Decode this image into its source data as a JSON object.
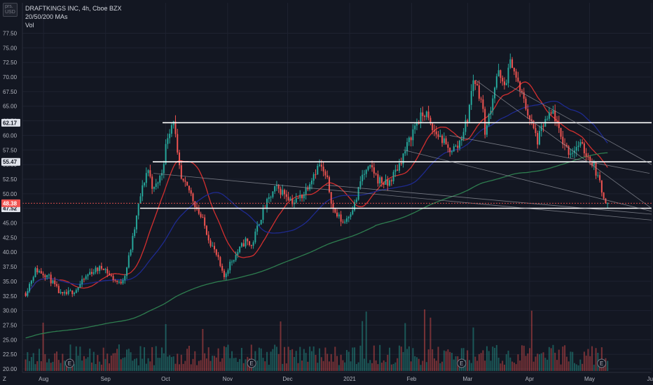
{
  "header": {
    "title": "DRAFTKINGS INC, 4h, Cboe BZX",
    "studies": "20/50/200 MAs",
    "volume_label": "Vol",
    "currency_top": "prs.",
    "currency_bottom": "USD"
  },
  "colors": {
    "background": "#131722",
    "up": "#26a69a",
    "down": "#ef5350",
    "ma20": "#d32f2f",
    "ma50": "#1e2a8f",
    "ma200": "#2e7d4f",
    "level_line": "#ffffff",
    "trendline": "#9598a1"
  },
  "chart_data": {
    "type": "candlestick",
    "symbol": "DRAFTKINGS INC",
    "interval": "4h",
    "exchange": "Cboe BZX",
    "y_axis": {
      "min": 20,
      "max": 77.5,
      "ticks": [
        "77.50",
        "75.00",
        "72.50",
        "70.00",
        "67.50",
        "65.00",
        "62.50",
        "60.00",
        "57.50",
        "55.00",
        "52.50",
        "50.00",
        "47.50",
        "45.00",
        "42.50",
        "40.00",
        "37.50",
        "35.00",
        "32.50",
        "30.00",
        "27.50",
        "25.00",
        "22.50",
        "20.00"
      ]
    },
    "x_axis": {
      "ticks": [
        "Aug",
        "Sep",
        "Oct",
        "Nov",
        "Dec",
        "2021",
        "Feb",
        "Mar",
        "Apr",
        "May",
        "Jun"
      ],
      "left_edge_label": "Z"
    },
    "price_series": [
      {
        "date": "2020-07-23",
        "price": 33
      },
      {
        "date": "2020-07-28",
        "price": 37
      },
      {
        "date": "2020-08-03",
        "price": 36
      },
      {
        "date": "2020-08-10",
        "price": 32.5
      },
      {
        "date": "2020-08-17",
        "price": 33.5
      },
      {
        "date": "2020-08-24",
        "price": 36.5
      },
      {
        "date": "2020-08-31",
        "price": 37.5
      },
      {
        "date": "2020-09-03",
        "price": 36
      },
      {
        "date": "2020-09-08",
        "price": 34.5
      },
      {
        "date": "2020-09-11",
        "price": 36.5
      },
      {
        "date": "2020-09-15",
        "price": 43
      },
      {
        "date": "2020-09-18",
        "price": 49
      },
      {
        "date": "2020-09-22",
        "price": 54.5
      },
      {
        "date": "2020-09-25",
        "price": 50.5
      },
      {
        "date": "2020-09-29",
        "price": 53.5
      },
      {
        "date": "2020-10-02",
        "price": 60
      },
      {
        "date": "2020-10-05",
        "price": 63
      },
      {
        "date": "2020-10-07",
        "price": 56
      },
      {
        "date": "2020-10-09",
        "price": 52
      },
      {
        "date": "2020-10-13",
        "price": 50.5
      },
      {
        "date": "2020-10-16",
        "price": 48
      },
      {
        "date": "2020-10-20",
        "price": 45
      },
      {
        "date": "2020-10-23",
        "price": 42
      },
      {
        "date": "2020-10-27",
        "price": 39
      },
      {
        "date": "2020-10-30",
        "price": 35.5
      },
      {
        "date": "2020-11-02",
        "price": 38
      },
      {
        "date": "2020-11-06",
        "price": 40
      },
      {
        "date": "2020-11-10",
        "price": 42
      },
      {
        "date": "2020-11-13",
        "price": 41
      },
      {
        "date": "2020-11-17",
        "price": 45.5
      },
      {
        "date": "2020-11-20",
        "price": 48
      },
      {
        "date": "2020-11-25",
        "price": 51
      },
      {
        "date": "2020-11-30",
        "price": 50
      },
      {
        "date": "2020-12-04",
        "price": 48.5
      },
      {
        "date": "2020-12-09",
        "price": 50
      },
      {
        "date": "2020-12-14",
        "price": 53.5
      },
      {
        "date": "2020-12-17",
        "price": 55
      },
      {
        "date": "2020-12-21",
        "price": 52
      },
      {
        "date": "2020-12-24",
        "price": 47
      },
      {
        "date": "2020-12-29",
        "price": 45
      },
      {
        "date": "2021-01-04",
        "price": 48.5
      },
      {
        "date": "2021-01-07",
        "price": 53
      },
      {
        "date": "2021-01-12",
        "price": 54.5
      },
      {
        "date": "2021-01-15",
        "price": 52.5
      },
      {
        "date": "2021-01-20",
        "price": 51.5
      },
      {
        "date": "2021-01-25",
        "price": 54.5
      },
      {
        "date": "2021-01-29",
        "price": 57.5
      },
      {
        "date": "2021-02-03",
        "price": 62
      },
      {
        "date": "2021-02-08",
        "price": 64
      },
      {
        "date": "2021-02-11",
        "price": 61
      },
      {
        "date": "2021-02-16",
        "price": 59.5
      },
      {
        "date": "2021-02-19",
        "price": 57.5
      },
      {
        "date": "2021-02-24",
        "price": 58
      },
      {
        "date": "2021-03-01",
        "price": 63
      },
      {
        "date": "2021-03-04",
        "price": 70
      },
      {
        "date": "2021-03-08",
        "price": 66
      },
      {
        "date": "2021-03-10",
        "price": 60
      },
      {
        "date": "2021-03-12",
        "price": 64
      },
      {
        "date": "2021-03-16",
        "price": 71
      },
      {
        "date": "2021-03-19",
        "price": 68
      },
      {
        "date": "2021-03-23",
        "price": 73
      },
      {
        "date": "2021-03-25",
        "price": 70
      },
      {
        "date": "2021-03-29",
        "price": 66
      },
      {
        "date": "2021-04-01",
        "price": 63
      },
      {
        "date": "2021-04-05",
        "price": 59
      },
      {
        "date": "2021-04-08",
        "price": 62
      },
      {
        "date": "2021-04-13",
        "price": 64
      },
      {
        "date": "2021-04-16",
        "price": 60
      },
      {
        "date": "2021-04-21",
        "price": 57
      },
      {
        "date": "2021-04-26",
        "price": 58.5
      },
      {
        "date": "2021-04-29",
        "price": 57
      },
      {
        "date": "2021-05-03",
        "price": 55
      },
      {
        "date": "2021-05-05",
        "price": 53
      },
      {
        "date": "2021-05-07",
        "price": 50.5
      },
      {
        "date": "2021-05-10",
        "price": 48.38
      }
    ],
    "horizontal_levels": [
      {
        "price": 62.17,
        "label": "62.17"
      },
      {
        "price": 55.47,
        "label": "55.47"
      },
      {
        "price": 47.52,
        "label": "47.52"
      }
    ],
    "last_price": {
      "price": 48.38,
      "label": "48.38"
    },
    "moving_averages": [
      {
        "period": 20,
        "color": "#d32f2f"
      },
      {
        "period": 50,
        "color": "#1e2a8f"
      },
      {
        "period": 200,
        "color": "#2e7d4f"
      }
    ],
    "earnings_markers": [
      {
        "date": "2020-08-14",
        "label": "E"
      },
      {
        "date": "2020-11-13",
        "label": "E"
      },
      {
        "date": "2021-02-26",
        "label": "E"
      },
      {
        "date": "2021-05-07",
        "label": "E"
      }
    ],
    "volume": {
      "shown": true,
      "pane": "overlay-bottom"
    },
    "grid": true,
    "legend": "top-left"
  }
}
